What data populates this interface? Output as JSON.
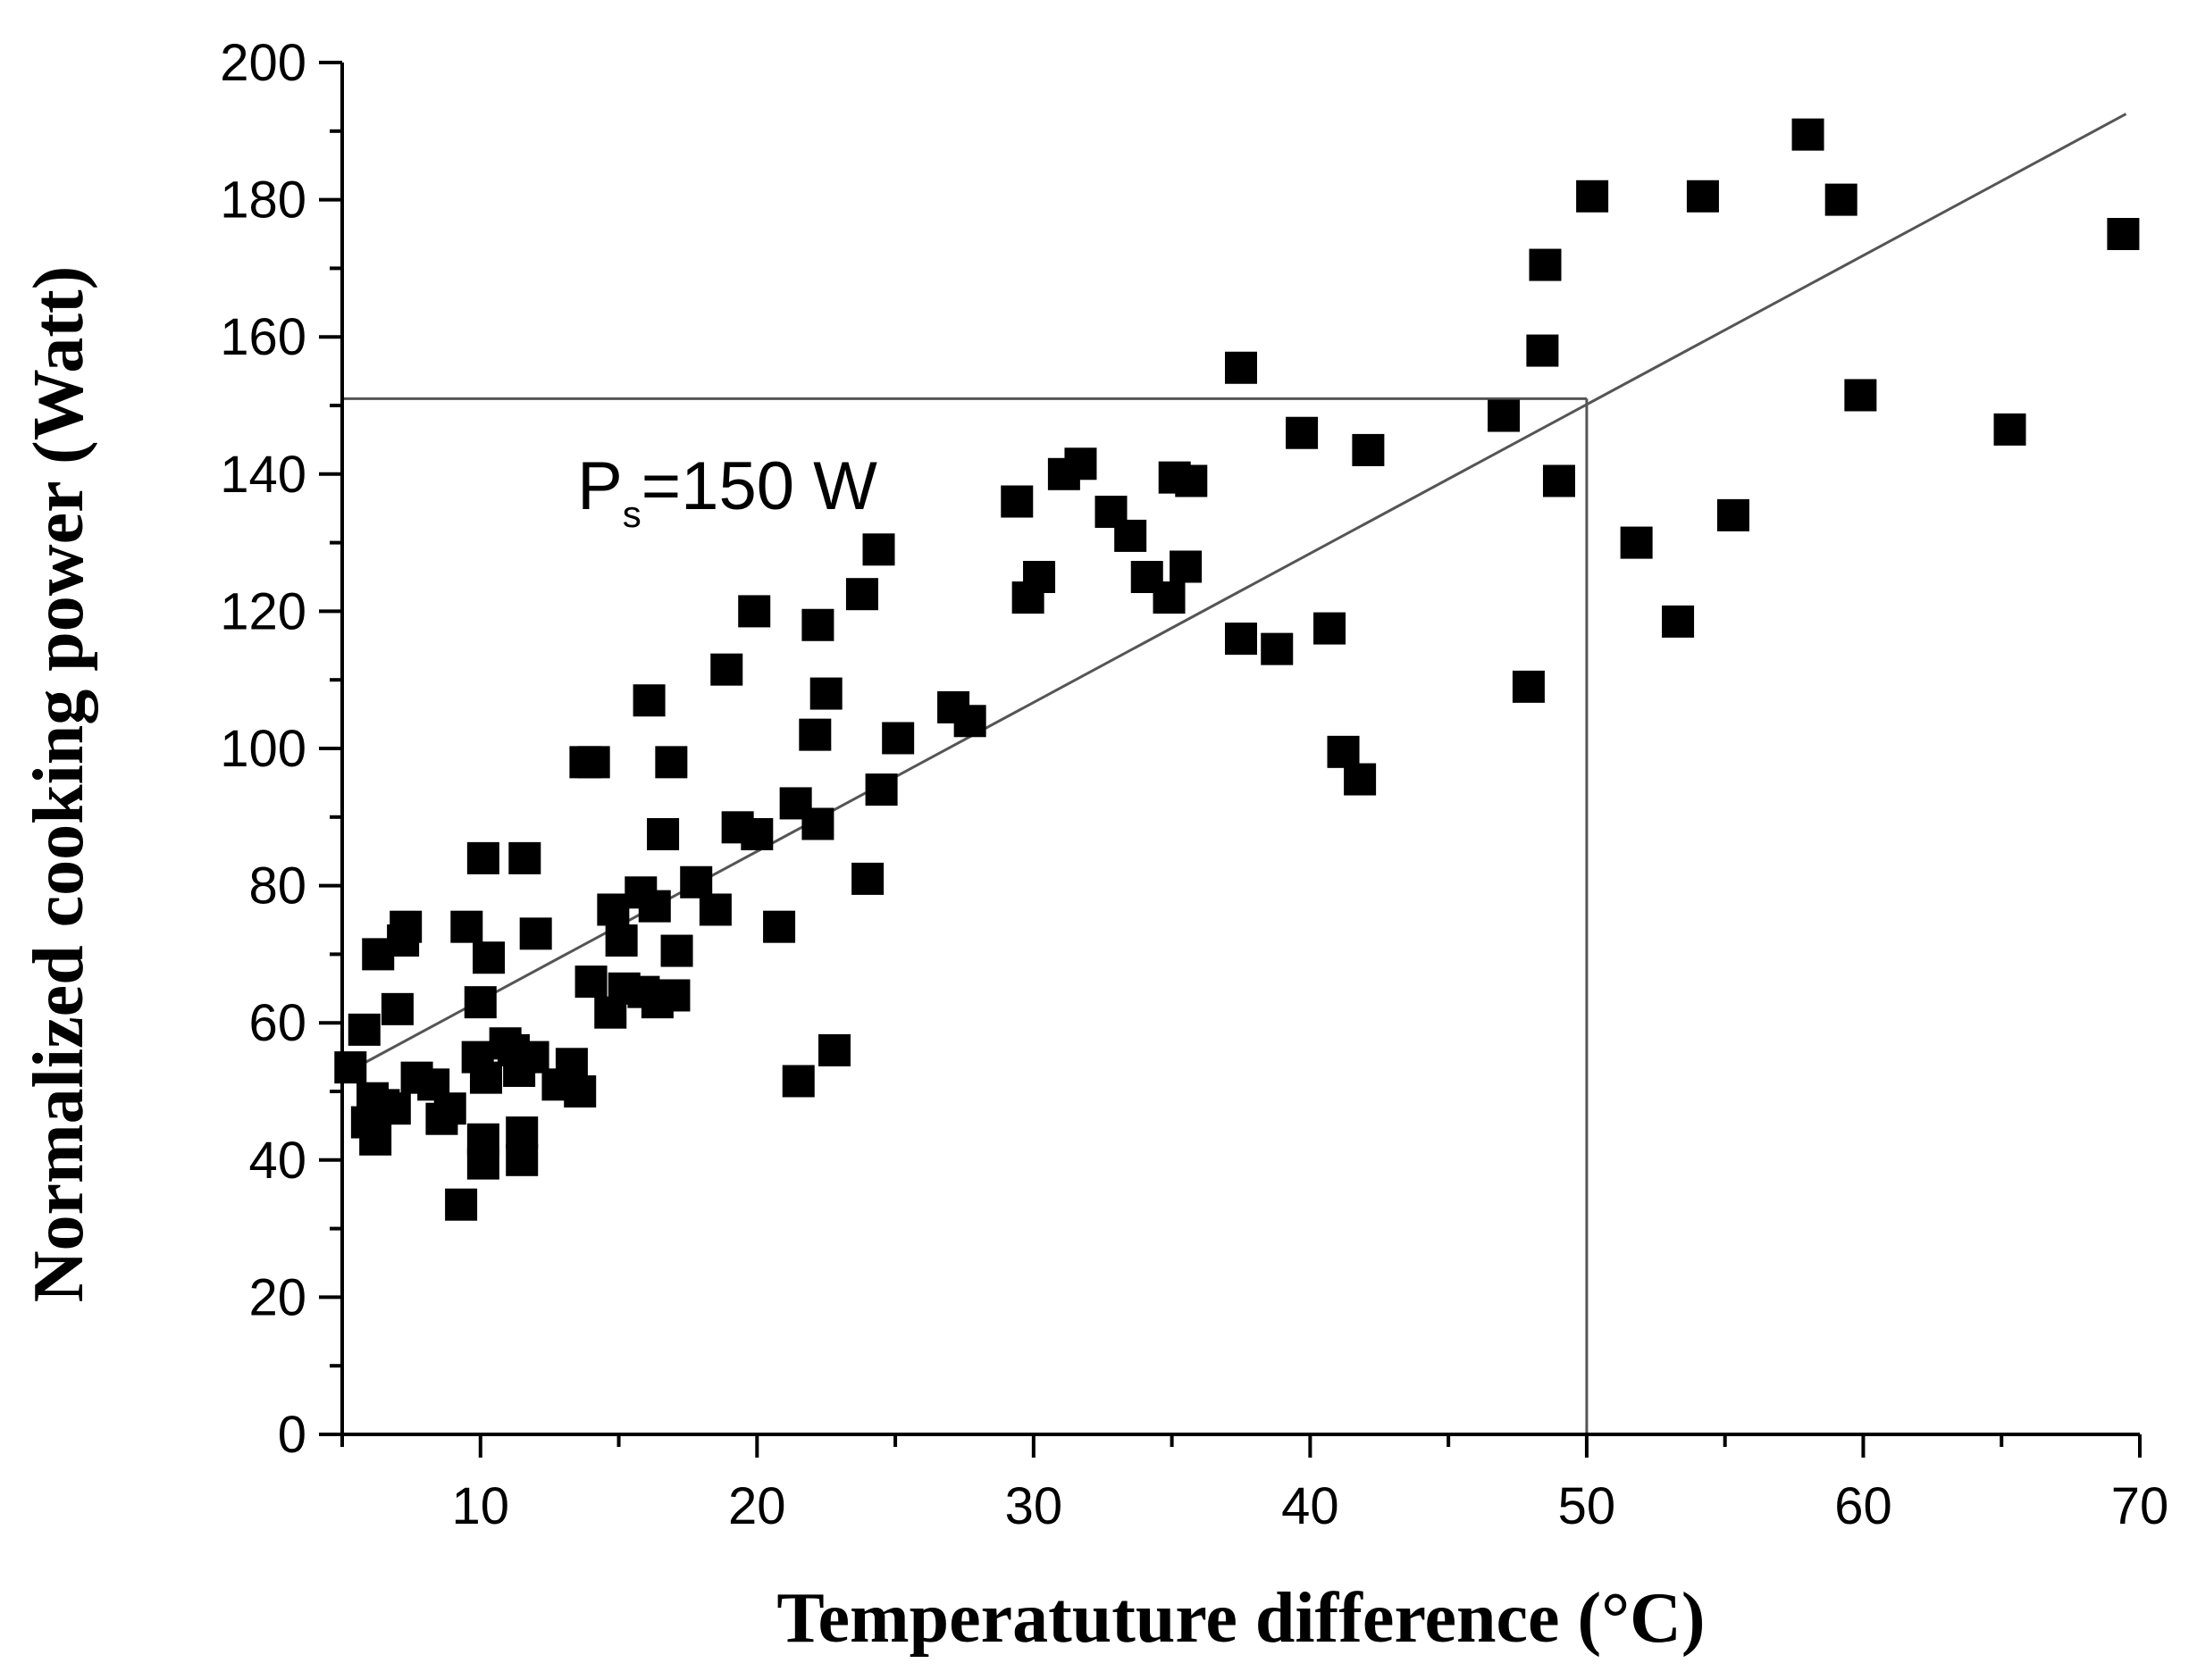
{
  "chart_data": {
    "type": "scatter",
    "title": "",
    "xlabel": "Temperatuture difference (°C)",
    "ylabel": "Normalized cooking power (Watt)",
    "xlim": [
      5,
      70
    ],
    "ylim": [
      0,
      200
    ],
    "x_ticks": [
      10,
      20,
      30,
      40,
      50,
      60,
      70
    ],
    "y_ticks": [
      0,
      20,
      40,
      60,
      80,
      100,
      120,
      140,
      160,
      180,
      200
    ],
    "grid": false,
    "marker": "square",
    "colors": {
      "marker": "#000000",
      "line": "#555555",
      "axis": "#000000"
    },
    "points": [
      [
        5.3,
        53.5
      ],
      [
        5.8,
        59
      ],
      [
        5.9,
        45.5
      ],
      [
        6.1,
        49
      ],
      [
        6.2,
        43
      ],
      [
        6.3,
        70
      ],
      [
        6.5,
        48
      ],
      [
        6.9,
        47.5
      ],
      [
        7.0,
        62
      ],
      [
        7.2,
        72
      ],
      [
        7.3,
        74
      ],
      [
        7.7,
        52
      ],
      [
        8.3,
        51
      ],
      [
        8.6,
        46
      ],
      [
        8.9,
        47.5
      ],
      [
        9.3,
        33.5
      ],
      [
        9.5,
        74
      ],
      [
        9.9,
        55
      ],
      [
        10.0,
        63
      ],
      [
        10.1,
        43
      ],
      [
        10.1,
        84
      ],
      [
        10.1,
        39.5
      ],
      [
        10.2,
        52
      ],
      [
        10.3,
        69.5
      ],
      [
        10.9,
        57
      ],
      [
        11.2,
        56
      ],
      [
        11.4,
        53
      ],
      [
        11.5,
        44
      ],
      [
        11.6,
        84
      ],
      [
        11.5,
        40
      ],
      [
        11.9,
        55
      ],
      [
        12.0,
        73
      ],
      [
        12.8,
        51
      ],
      [
        13.3,
        54
      ],
      [
        13.6,
        50
      ],
      [
        13.8,
        98
      ],
      [
        14.1,
        98
      ],
      [
        14.0,
        66
      ],
      [
        14.7,
        61.5
      ],
      [
        14.8,
        76.5
      ],
      [
        15.1,
        72
      ],
      [
        15.2,
        65
      ],
      [
        15.8,
        79
      ],
      [
        15.9,
        64.5
      ],
      [
        16.1,
        107
      ],
      [
        16.3,
        77
      ],
      [
        16.6,
        87.5
      ],
      [
        16.4,
        63
      ],
      [
        16.9,
        98
      ],
      [
        17.0,
        64
      ],
      [
        17.1,
        70.5
      ],
      [
        17.8,
        80.5
      ],
      [
        18.5,
        76.5
      ],
      [
        18.9,
        111.5
      ],
      [
        19.3,
        88.5
      ],
      [
        19.9,
        120
      ],
      [
        20.0,
        87.5
      ],
      [
        20.8,
        74
      ],
      [
        21.4,
        92
      ],
      [
        21.5,
        51.5
      ],
      [
        22.1,
        102
      ],
      [
        22.2,
        118
      ],
      [
        22.2,
        89
      ],
      [
        22.5,
        108
      ],
      [
        22.8,
        56
      ],
      [
        23.8,
        122.5
      ],
      [
        24.0,
        81
      ],
      [
        24.4,
        129
      ],
      [
        24.5,
        94
      ],
      [
        25.1,
        101.5
      ],
      [
        27.1,
        106
      ],
      [
        27.7,
        104
      ],
      [
        29.4,
        136
      ],
      [
        29.8,
        122
      ],
      [
        30.2,
        125
      ],
      [
        31.1,
        140
      ],
      [
        31.7,
        141.5
      ],
      [
        32.8,
        134.5
      ],
      [
        33.5,
        131
      ],
      [
        34.1,
        125
      ],
      [
        34.9,
        122
      ],
      [
        35.1,
        139.5
      ],
      [
        35.5,
        126.5
      ],
      [
        35.7,
        139
      ],
      [
        37.5,
        155.5
      ],
      [
        37.5,
        116
      ],
      [
        38.8,
        114.5
      ],
      [
        39.7,
        146
      ],
      [
        40.7,
        117.5
      ],
      [
        41.2,
        99.5
      ],
      [
        41.8,
        95.5
      ],
      [
        42.1,
        143.5
      ],
      [
        47.0,
        148.5
      ],
      [
        47.9,
        109
      ],
      [
        48.4,
        158
      ],
      [
        48.5,
        170.5
      ],
      [
        49.0,
        139
      ],
      [
        50.2,
        180.5
      ],
      [
        51.8,
        130
      ],
      [
        53.3,
        118.5
      ],
      [
        54.2,
        180.5
      ],
      [
        55.3,
        134
      ],
      [
        58.0,
        189.5
      ],
      [
        59.2,
        180
      ],
      [
        59.9,
        151.5
      ],
      [
        65.3,
        146.5
      ],
      [
        69.4,
        175
      ]
    ],
    "fit_line": {
      "x": [
        5.5,
        69.5
      ],
      "y": [
        53.5,
        192.5
      ]
    },
    "reference": {
      "x": 50,
      "y": 151
    },
    "annotation": {
      "main": "P",
      "sub": "s",
      "rest": "=150 W",
      "x": 13.5,
      "y": 138
    }
  }
}
